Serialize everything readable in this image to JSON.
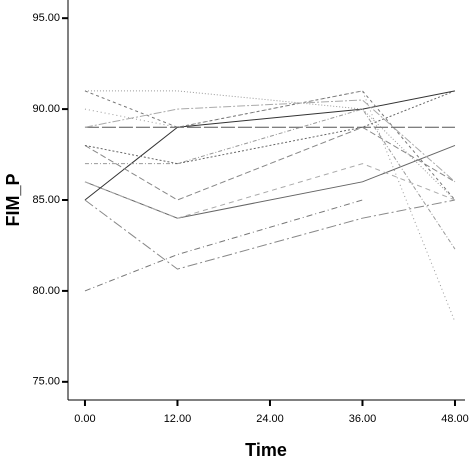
{
  "chart_data": {
    "type": "line",
    "x_label": "Time",
    "y_label": "FIM_P",
    "x": [
      0,
      12,
      36,
      48
    ],
    "xlim": [
      -2.2,
      49.3
    ],
    "xticks": [
      {
        "value": 0,
        "label": "0.00"
      },
      {
        "value": 12,
        "label": "12.00"
      },
      {
        "value": 24,
        "label": "24.00"
      },
      {
        "value": 36,
        "label": "36.00"
      },
      {
        "value": 48,
        "label": "48.00"
      }
    ],
    "ylim": [
      74,
      96
    ],
    "yticks": [
      {
        "value": 75,
        "label": "75.00"
      },
      {
        "value": 80,
        "label": "80.00"
      },
      {
        "value": 85,
        "label": "85.00"
      },
      {
        "value": 90,
        "label": "90.00"
      },
      {
        "value": 95,
        "label": "95.00"
      }
    ],
    "series": [
      {
        "color": "#666666",
        "values": [
          86,
          84,
          86,
          88
        ]
      },
      {
        "color": "#333333",
        "values": [
          85,
          89,
          90,
          91
        ]
      },
      {
        "color": "#777777",
        "values": [
          80,
          82,
          85,
          null
        ]
      },
      {
        "color": "#888888",
        "values": [
          85,
          81.2,
          84,
          85
        ]
      },
      {
        "color": "#555555",
        "values": [
          89,
          89,
          89,
          89
        ]
      },
      {
        "color": "#999999",
        "values": [
          91,
          91,
          90,
          85
        ]
      },
      {
        "color": "#999999",
        "values": [
          90,
          89,
          91,
          78.3
        ]
      },
      {
        "color": "#888888",
        "values": [
          88,
          85,
          89,
          86
        ]
      },
      {
        "color": "#999999",
        "values": [
          87,
          87,
          90,
          82.3
        ]
      },
      {
        "color": "#777777",
        "values": [
          91,
          89,
          91,
          85
        ]
      },
      {
        "color": "#aaaaaa",
        "values": [
          89,
          90,
          90.5,
          86
        ]
      },
      {
        "color": "#666666",
        "values": [
          88,
          87,
          89,
          91
        ]
      },
      {
        "color": "#aaaaaa",
        "values": [
          86,
          84,
          87,
          85
        ]
      }
    ]
  }
}
